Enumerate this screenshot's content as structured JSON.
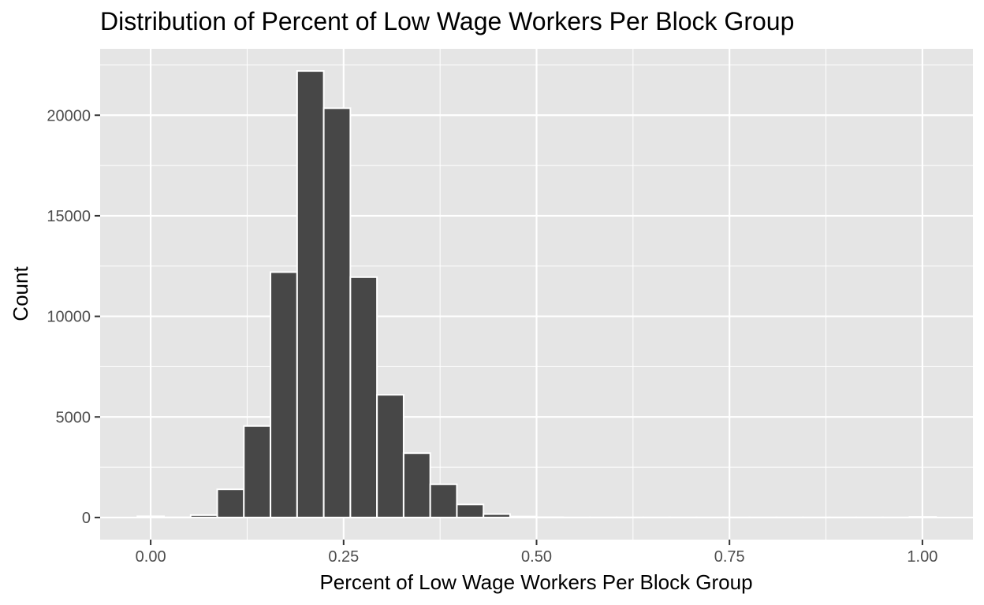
{
  "chart_data": {
    "type": "bar",
    "title": "Distribution of Percent of Low Wage Workers Per Block Group",
    "xlabel": "Percent of Low Wage Workers Per Block Group",
    "ylabel": "Count",
    "xlim": [
      -0.0655,
      1.0655
    ],
    "ylim": [
      -1100,
      23300
    ],
    "x_ticks": [
      0.0,
      0.25,
      0.5,
      0.75,
      1.0
    ],
    "x_tick_labels": [
      "0.00",
      "0.25",
      "0.50",
      "0.75",
      "1.00"
    ],
    "y_ticks": [
      0,
      5000,
      10000,
      15000,
      20000
    ],
    "y_tick_labels": [
      "0",
      "5000",
      "10000",
      "15000",
      "20000"
    ],
    "bin_width": 0.0345,
    "bins": [
      {
        "x": 0.0,
        "value": 60
      },
      {
        "x": 0.0345,
        "value": 10
      },
      {
        "x": 0.069,
        "value": 120
      },
      {
        "x": 0.1035,
        "value": 1400
      },
      {
        "x": 0.138,
        "value": 4550
      },
      {
        "x": 0.1725,
        "value": 12200
      },
      {
        "x": 0.207,
        "value": 22200
      },
      {
        "x": 0.2415,
        "value": 20350
      },
      {
        "x": 0.276,
        "value": 11950
      },
      {
        "x": 0.3105,
        "value": 6100
      },
      {
        "x": 0.345,
        "value": 3200
      },
      {
        "x": 0.3795,
        "value": 1650
      },
      {
        "x": 0.414,
        "value": 650
      },
      {
        "x": 0.4485,
        "value": 170
      },
      {
        "x": 0.483,
        "value": 50
      },
      {
        "x": 0.5175,
        "value": 15
      },
      {
        "x": 0.552,
        "value": 5
      },
      {
        "x": 0.5865,
        "value": 5
      },
      {
        "x": 0.621,
        "value": 5
      },
      {
        "x": 0.6555,
        "value": 5
      },
      {
        "x": 0.69,
        "value": 5
      },
      {
        "x": 0.7245,
        "value": 5
      },
      {
        "x": 0.759,
        "value": 5
      },
      {
        "x": 0.7935,
        "value": 5
      },
      {
        "x": 0.828,
        "value": 5
      },
      {
        "x": 0.8625,
        "value": 5
      },
      {
        "x": 0.897,
        "value": 5
      },
      {
        "x": 0.9315,
        "value": 5
      },
      {
        "x": 0.966,
        "value": 5
      },
      {
        "x": 1.0005,
        "value": 30
      }
    ],
    "grid": true,
    "legend": "none",
    "colors": {
      "panel": "#e5e5e5",
      "grid": "#ffffff",
      "bar_fill": "#474747",
      "bar_edge": "#ffffff",
      "tick_text": "#4d4d4d",
      "title_text": "#000000"
    }
  }
}
